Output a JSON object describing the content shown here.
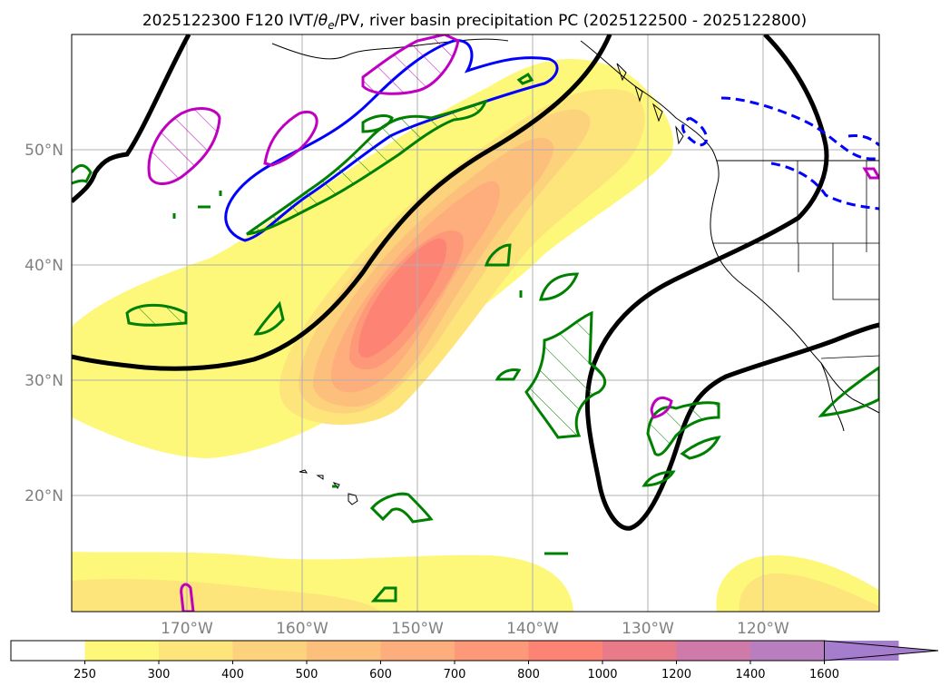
{
  "title": {
    "part1": "2025122300 F120 IVT/",
    "theta": "θ",
    "sub": "e",
    "part2": "/PV, river basin precipitation PC (2025122500 - 2025122800)"
  },
  "lat_labels": [
    "50°N",
    "40°N",
    "30°N",
    "20°N"
  ],
  "lon_labels": [
    "170°W",
    "160°W",
    "150°W",
    "140°W",
    "130°W",
    "120°W"
  ],
  "colorbar": {
    "ticks": [
      "250",
      "300",
      "400",
      "500",
      "600",
      "700",
      "800",
      "1000",
      "1200",
      "1400",
      "1600"
    ],
    "colors": [
      "#ffffff",
      "#fdf87a",
      "#fde57c",
      "#fdd27c",
      "#fdc07c",
      "#fdae7c",
      "#fd9878",
      "#fd8474",
      "#e87a8a",
      "#cf7aa8",
      "#b87ec0",
      "#a47dcc"
    ]
  },
  "contour_colors": {
    "theta_e": "#000000",
    "pv_positive": "#0000ff",
    "pv_green": "#008000",
    "pv_magenta": "#c000c0"
  }
}
